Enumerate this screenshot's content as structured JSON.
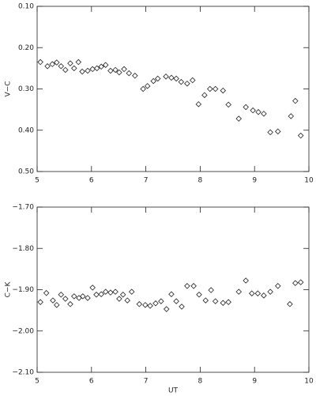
{
  "chart_data": [
    {
      "type": "scatter",
      "ylabel": "V−C",
      "y_inverted": true,
      "marker": "diamond",
      "color": "#222222",
      "xlim": [
        5,
        10
      ],
      "xticks": [
        5,
        6,
        7,
        8,
        9,
        10
      ],
      "ylim": [
        0.1,
        0.5
      ],
      "yticks": [
        {
          "value": 0.1,
          "label": "0.10"
        },
        {
          "value": 0.2,
          "label": "0.20"
        },
        {
          "value": 0.3,
          "label": "0.30"
        },
        {
          "value": 0.4,
          "label": "0.40"
        },
        {
          "value": 0.5,
          "label": "0.50"
        }
      ],
      "x": [
        5.06,
        5.19,
        5.28,
        5.36,
        5.44,
        5.52,
        5.61,
        5.68,
        5.76,
        5.83,
        5.93,
        6.02,
        6.1,
        6.18,
        6.26,
        6.35,
        6.44,
        6.51,
        6.6,
        6.69,
        6.8,
        6.95,
        7.03,
        7.14,
        7.22,
        7.37,
        7.47,
        7.56,
        7.65,
        7.76,
        7.86,
        7.97,
        8.08,
        8.18,
        8.28,
        8.42,
        8.52,
        8.71,
        8.84,
        8.97,
        9.07,
        9.17,
        9.29,
        9.43,
        9.67,
        9.75,
        9.85
      ],
      "values": [
        0.235,
        0.245,
        0.24,
        0.236,
        0.245,
        0.254,
        0.238,
        0.25,
        0.235,
        0.258,
        0.256,
        0.252,
        0.25,
        0.246,
        0.242,
        0.256,
        0.254,
        0.26,
        0.252,
        0.262,
        0.268,
        0.3,
        0.293,
        0.281,
        0.275,
        0.27,
        0.273,
        0.275,
        0.283,
        0.287,
        0.279,
        0.337,
        0.315,
        0.3,
        0.3,
        0.304,
        0.338,
        0.372,
        0.344,
        0.352,
        0.356,
        0.36,
        0.405,
        0.403,
        0.366,
        0.329,
        0.413
      ]
    },
    {
      "type": "scatter",
      "ylabel": "C−K",
      "xlabel": "UT",
      "y_inverted": true,
      "marker": "diamond",
      "color": "#222222",
      "xlim": [
        5,
        10
      ],
      "xticks": [
        5,
        6,
        7,
        8,
        9,
        10
      ],
      "ylim": [
        -1.7,
        -2.1
      ],
      "yticks": [
        {
          "value": -1.7,
          "label": "−1.70"
        },
        {
          "value": -1.8,
          "label": "−1.80"
        },
        {
          "value": -1.9,
          "label": "−1.90"
        },
        {
          "value": -2.0,
          "label": "−2.00"
        },
        {
          "value": -2.1,
          "label": "−2.10"
        }
      ],
      "x": [
        5.06,
        5.17,
        5.29,
        5.36,
        5.44,
        5.52,
        5.61,
        5.68,
        5.77,
        5.84,
        5.93,
        6.02,
        6.09,
        6.18,
        6.26,
        6.35,
        6.44,
        6.51,
        6.58,
        6.66,
        6.74,
        6.88,
        6.99,
        7.08,
        7.18,
        7.28,
        7.38,
        7.47,
        7.56,
        7.66,
        7.76,
        7.88,
        7.98,
        8.1,
        8.2,
        8.28,
        8.42,
        8.52,
        8.71,
        8.84,
        8.95,
        9.06,
        9.17,
        9.29,
        9.43,
        9.65,
        9.75,
        9.85
      ],
      "values": [
        -1.93,
        -1.908,
        -1.926,
        -1.937,
        -1.912,
        -1.922,
        -1.935,
        -1.916,
        -1.92,
        -1.916,
        -1.92,
        -1.895,
        -1.912,
        -1.911,
        -1.905,
        -1.907,
        -1.905,
        -1.922,
        -1.912,
        -1.926,
        -1.905,
        -1.935,
        -1.937,
        -1.939,
        -1.933,
        -1.928,
        -1.947,
        -1.911,
        -1.928,
        -1.941,
        -1.891,
        -1.891,
        -1.912,
        -1.926,
        -1.901,
        -1.928,
        -1.932,
        -1.93,
        -1.905,
        -1.878,
        -1.909,
        -1.909,
        -1.914,
        -1.905,
        -1.891,
        -1.935,
        -1.884,
        -1.882
      ]
    }
  ]
}
